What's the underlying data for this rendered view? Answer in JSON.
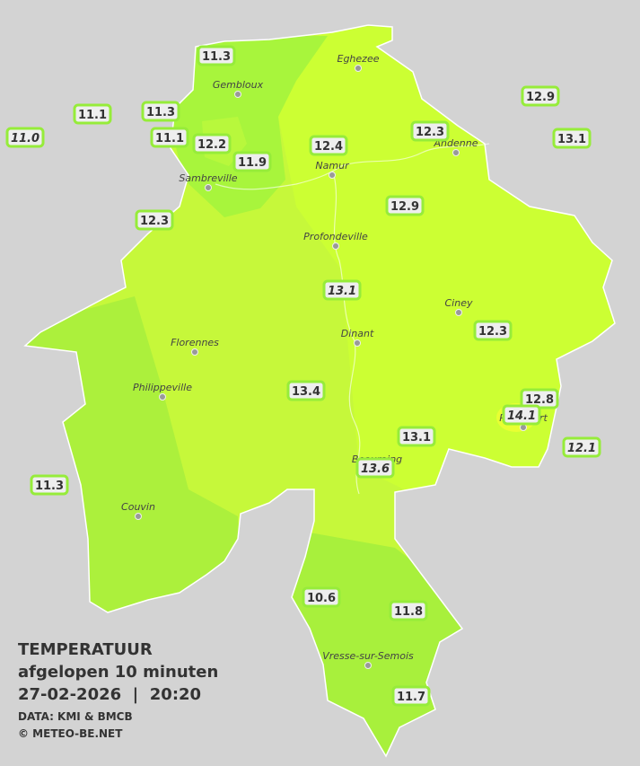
{
  "title_block": {
    "title": "TEMPERATUUR",
    "subtitle": "afgelopen 10 minuten",
    "datetime": "27-02-2026  |  20:20",
    "source": "DATA: KMI & BMCB",
    "credit": "© METEO-BE.NET"
  },
  "cities": [
    {
      "name": "Eghezee"
    },
    {
      "name": "Gembloux"
    },
    {
      "name": "Andenne"
    },
    {
      "name": "Namur"
    },
    {
      "name": "Sambreville"
    },
    {
      "name": "Profondeville"
    },
    {
      "name": "Ciney"
    },
    {
      "name": "Dinant"
    },
    {
      "name": "Florennes"
    },
    {
      "name": "Philippeville"
    },
    {
      "name": "Rochefort"
    },
    {
      "name": "Beauraing"
    },
    {
      "name": "Couvin"
    },
    {
      "name": "Vresse-sur-Semois"
    }
  ],
  "stations": [
    {
      "value": "11.3"
    },
    {
      "value": "11.1"
    },
    {
      "value": "11.3"
    },
    {
      "value": "11.0"
    },
    {
      "value": "11.1"
    },
    {
      "value": "12.2"
    },
    {
      "value": "11.9"
    },
    {
      "value": "12.4"
    },
    {
      "value": "12.3"
    },
    {
      "value": "12.9"
    },
    {
      "value": "13.1"
    },
    {
      "value": "12.3"
    },
    {
      "value": "12.9"
    },
    {
      "value": "13.1"
    },
    {
      "value": "12.3"
    },
    {
      "value": "13.4"
    },
    {
      "value": "12.8"
    },
    {
      "value": "14.1"
    },
    {
      "value": "12.1"
    },
    {
      "value": "13.1"
    },
    {
      "value": "13.6"
    },
    {
      "value": "11.3"
    },
    {
      "value": "10.6"
    },
    {
      "value": "11.8"
    },
    {
      "value": "11.7"
    }
  ]
}
